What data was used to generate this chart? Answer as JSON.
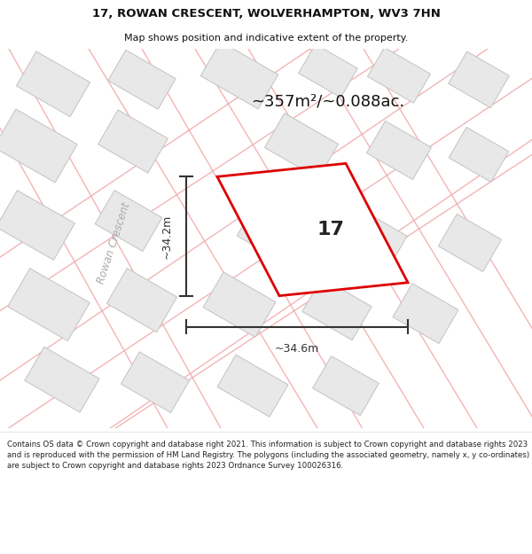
{
  "title_line1": "17, ROWAN CRESCENT, WOLVERHAMPTON, WV3 7HN",
  "title_line2": "Map shows position and indicative extent of the property.",
  "area_label": "~357m²/~0.088ac.",
  "property_number": "17",
  "dim_width": "~34.6m",
  "dim_height": "~34.2m",
  "street_label": "Rowan Crescent",
  "footer_text": "Contains OS data © Crown copyright and database right 2021. This information is subject to Crown copyright and database rights 2023 and is reproduced with the permission of HM Land Registry. The polygons (including the associated geometry, namely x, y co-ordinates) are subject to Crown copyright and database rights 2023 Ordnance Survey 100026316.",
  "map_bg_color": "#ffffff",
  "building_color": "#e8e8e8",
  "building_edge_color": "#c8c8c8",
  "road_line_color": "#f0a8a8",
  "property_outline_color": "#dd0000",
  "property_fill_color": "#ffffff",
  "dimension_color": "#333333",
  "title_color": "#111111",
  "footer_color": "#222222",
  "area_label_color": "#111111",
  "street_label_color": "#aaaaaa"
}
